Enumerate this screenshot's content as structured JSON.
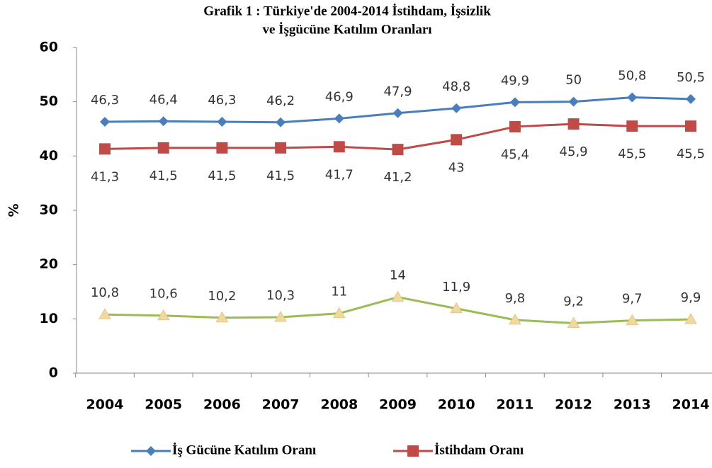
{
  "chart_data": {
    "type": "line",
    "title": [
      "Grafik  1 : Türkiye'de  2004-2014 İstihdam, İşsizlik",
      "ve İşgücüne Katılım Oranları"
    ],
    "y_label": "%",
    "categories": [
      "2004",
      "2005",
      "2006",
      "2007",
      "2008",
      "2009",
      "2010",
      "2011",
      "2012",
      "2013",
      "2014"
    ],
    "ylim": [
      0,
      60
    ],
    "yticks": [
      0,
      10,
      20,
      30,
      40,
      50,
      60
    ],
    "grid": false,
    "legend": "bottom",
    "series": [
      {
        "name": "İş Gücüne Katılım Oranı",
        "color": "#4a7ebb",
        "marker": "diamond",
        "values": [
          46.3,
          46.4,
          46.3,
          46.2,
          46.9,
          47.9,
          48.8,
          49.9,
          50,
          50.8,
          50.5
        ],
        "value_labels": [
          "46,3",
          "46,4",
          "46,3",
          "46,2",
          "46,9",
          "47,9",
          "48,8",
          "49,9",
          "50",
          "50,8",
          "50,5"
        ]
      },
      {
        "name": "İstihdam Oranı",
        "color": "#be4b48",
        "marker": "square",
        "values": [
          41.3,
          41.5,
          41.5,
          41.5,
          41.7,
          41.2,
          43,
          45.4,
          45.9,
          45.5,
          45.5
        ],
        "value_labels": [
          "41,3",
          "41,5",
          "41,5",
          "41,5",
          "41,7",
          "41,2",
          "43",
          "45,4",
          "45,9",
          "45,5",
          "45,5"
        ]
      },
      {
        "color": "#9bbb59",
        "marker": "triangle",
        "values": [
          10.8,
          10.6,
          10.2,
          10.3,
          11,
          14,
          11.9,
          9.8,
          9.2,
          9.7,
          9.9
        ],
        "value_labels": [
          "10,8",
          "10,6",
          "10,2",
          "10,3",
          "11",
          "14",
          "11,9",
          "9,8",
          "9,2",
          "9,7",
          "9,9"
        ]
      }
    ]
  }
}
